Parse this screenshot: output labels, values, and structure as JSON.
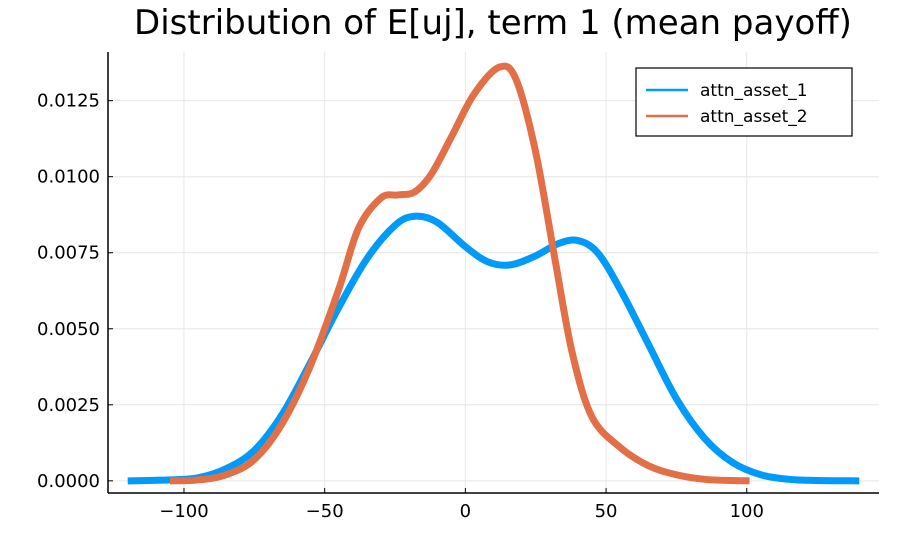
{
  "chart_data": {
    "type": "line",
    "title": "Distribution of E[uj], term 1 (mean payoff)",
    "xlabel": "",
    "ylabel": "",
    "xlim": [
      -127,
      147
    ],
    "ylim": [
      -0.0004,
      0.0141
    ],
    "x_ticks": [
      -100,
      -50,
      0,
      50,
      100
    ],
    "x_tick_labels": [
      "−100",
      "−50",
      "0",
      "50",
      "100"
    ],
    "y_ticks": [
      0,
      0.0025,
      0.005,
      0.0075,
      0.01,
      0.0125
    ],
    "y_tick_labels": [
      "0.0000",
      "0.0025",
      "0.0050",
      "0.0075",
      "0.0100",
      "0.0125"
    ],
    "grid": true,
    "legend_position": "top-right",
    "series": [
      {
        "name": "attn_asset_1",
        "color": "#009af9",
        "points": [
          [
            -120,
            0.0
          ],
          [
            -105,
            3e-05
          ],
          [
            -95,
            0.0001
          ],
          [
            -85,
            0.0004
          ],
          [
            -75,
            0.001
          ],
          [
            -65,
            0.0022
          ],
          [
            -55,
            0.0039
          ],
          [
            -45,
            0.0057
          ],
          [
            -35,
            0.0073
          ],
          [
            -25,
            0.0084
          ],
          [
            -18,
            0.0087
          ],
          [
            -10,
            0.0085
          ],
          [
            0,
            0.0077
          ],
          [
            8,
            0.0072
          ],
          [
            16,
            0.0071
          ],
          [
            25,
            0.0074
          ],
          [
            33,
            0.0078
          ],
          [
            40,
            0.0079
          ],
          [
            47,
            0.0075
          ],
          [
            55,
            0.0063
          ],
          [
            65,
            0.0045
          ],
          [
            75,
            0.0027
          ],
          [
            85,
            0.0014
          ],
          [
            95,
            0.0006
          ],
          [
            105,
            0.0002
          ],
          [
            115,
            5e-05
          ],
          [
            125,
            1e-05
          ],
          [
            140,
            0.0
          ]
        ]
      },
      {
        "name": "attn_asset_2",
        "color": "#e26f46",
        "points": [
          [
            -105,
            0.0
          ],
          [
            -95,
            3e-05
          ],
          [
            -85,
            0.0002
          ],
          [
            -75,
            0.0007
          ],
          [
            -65,
            0.0019
          ],
          [
            -55,
            0.0038
          ],
          [
            -45,
            0.0063
          ],
          [
            -38,
            0.0083
          ],
          [
            -30,
            0.0093
          ],
          [
            -24,
            0.0094
          ],
          [
            -18,
            0.0095
          ],
          [
            -12,
            0.0101
          ],
          [
            -5,
            0.0113
          ],
          [
            3,
            0.0127
          ],
          [
            12,
            0.0136
          ],
          [
            18,
            0.0132
          ],
          [
            25,
            0.0108
          ],
          [
            32,
            0.0072
          ],
          [
            38,
            0.0042
          ],
          [
            45,
            0.0021
          ],
          [
            55,
            0.0011
          ],
          [
            65,
            0.0005
          ],
          [
            75,
            0.0002
          ],
          [
            85,
            5e-05
          ],
          [
            95,
            1e-05
          ],
          [
            101,
            0.0
          ]
        ]
      }
    ]
  }
}
